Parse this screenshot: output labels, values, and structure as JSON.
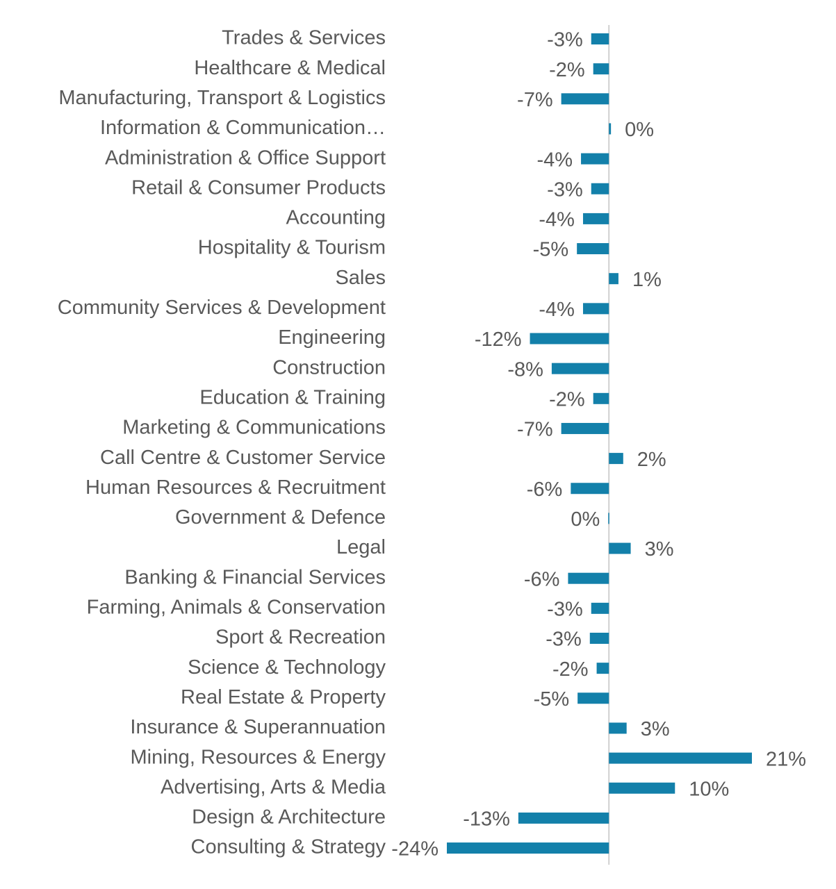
{
  "chart_data": {
    "type": "bar",
    "orientation": "horizontal",
    "color": "#1380aa",
    "categories": [
      "Trades & Services",
      "Healthcare & Medical",
      "Manufacturing, Transport & Logistics",
      "Information & Communication…",
      "Administration & Office Support",
      "Retail & Consumer Products",
      "Accounting",
      "Hospitality & Tourism",
      "Sales",
      "Community Services & Development",
      "Engineering",
      "Construction",
      "Education & Training",
      "Marketing & Communications",
      "Call Centre & Customer Service",
      "Human Resources & Recruitment",
      "Government & Defence",
      "Legal",
      "Banking & Financial Services",
      "Farming, Animals & Conservation",
      "Sport & Recreation",
      "Science & Technology",
      "Real Estate & Property",
      "Insurance & Superannuation",
      "Mining, Resources & Energy",
      "Advertising, Arts & Media",
      "Design & Architecture",
      "Consulting & Strategy"
    ],
    "values": [
      -2.6,
      -2.3,
      -7.0,
      0.3,
      -4.1,
      -2.6,
      -3.8,
      -4.7,
      1.4,
      -3.8,
      -11.6,
      -8.4,
      -2.3,
      -7.0,
      2.1,
      -5.6,
      -0.1,
      3.2,
      -6.0,
      -2.6,
      -2.8,
      -1.8,
      -4.6,
      2.6,
      21.0,
      9.7,
      -13.3,
      -23.8
    ],
    "value_labels": [
      "-3%",
      "-2%",
      "-7%",
      "0%",
      "-4%",
      "-3%",
      "-4%",
      "-5%",
      "1%",
      "-4%",
      "-12%",
      "-8%",
      "-2%",
      "-7%",
      "2%",
      "-6%",
      "0%",
      "3%",
      "-6%",
      "-3%",
      "-3%",
      "-2%",
      "-5%",
      "3%",
      "21%",
      "10%",
      "-13%",
      "-24%"
    ]
  }
}
